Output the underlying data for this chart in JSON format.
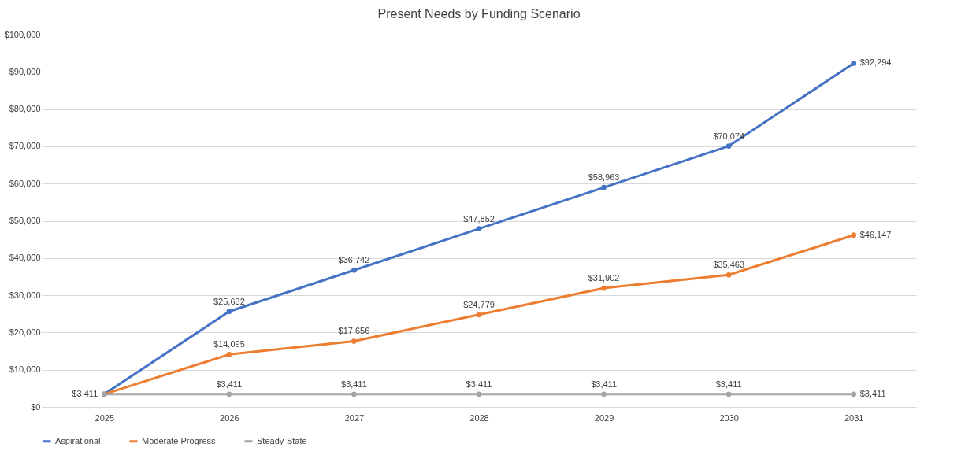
{
  "chart_data": {
    "type": "line",
    "title": "Present Needs by Funding Scenario",
    "categories": [
      "2025",
      "2026",
      "2027",
      "2028",
      "2029",
      "2030",
      "2031"
    ],
    "series": [
      {
        "name": "Aspirational",
        "color": "#4472c4",
        "values": [
          3411,
          25632,
          36742,
          47852,
          58963,
          70074,
          92294
        ],
        "value_labels": [
          null,
          "$25,632",
          "$36,742",
          "$47,852",
          "$58,963",
          "$70,074",
          "$92,294"
        ]
      },
      {
        "name": "Moderate Progress",
        "color": "#ed7d31",
        "values": [
          3411,
          14095,
          17656,
          24779,
          31902,
          35463,
          46147
        ],
        "value_labels": [
          null,
          "$14,095",
          "$17,656",
          "$24,779",
          "$31,902",
          "$35,463",
          "$46,147"
        ]
      },
      {
        "name": "Steady-State",
        "color": "#a5a5a5",
        "values": [
          3411,
          3411,
          3411,
          3411,
          3411,
          3411,
          3411
        ],
        "value_labels": [
          "$3,411",
          "$3,411",
          "$3,411",
          "$3,411",
          "$3,411",
          "$3,411",
          "$3,411"
        ]
      }
    ],
    "ylim": [
      0,
      100000
    ],
    "yticks": [
      {
        "value": 0,
        "label": "$0"
      },
      {
        "value": 10000,
        "label": "$10,000"
      },
      {
        "value": 20000,
        "label": "$20,000"
      },
      {
        "value": 30000,
        "label": "$30,000"
      },
      {
        "value": 40000,
        "label": "$40,000"
      },
      {
        "value": 50000,
        "label": "$50,000"
      },
      {
        "value": 60000,
        "label": "$60,000"
      },
      {
        "value": 70000,
        "label": "$70,000"
      },
      {
        "value": 80000,
        "label": "$80,000"
      },
      {
        "value": 90000,
        "label": "$90,000"
      },
      {
        "value": 100000,
        "label": "$100,000"
      }
    ],
    "grid": "y",
    "legend": "bottom",
    "marker": "circle",
    "line_style": "solid"
  }
}
